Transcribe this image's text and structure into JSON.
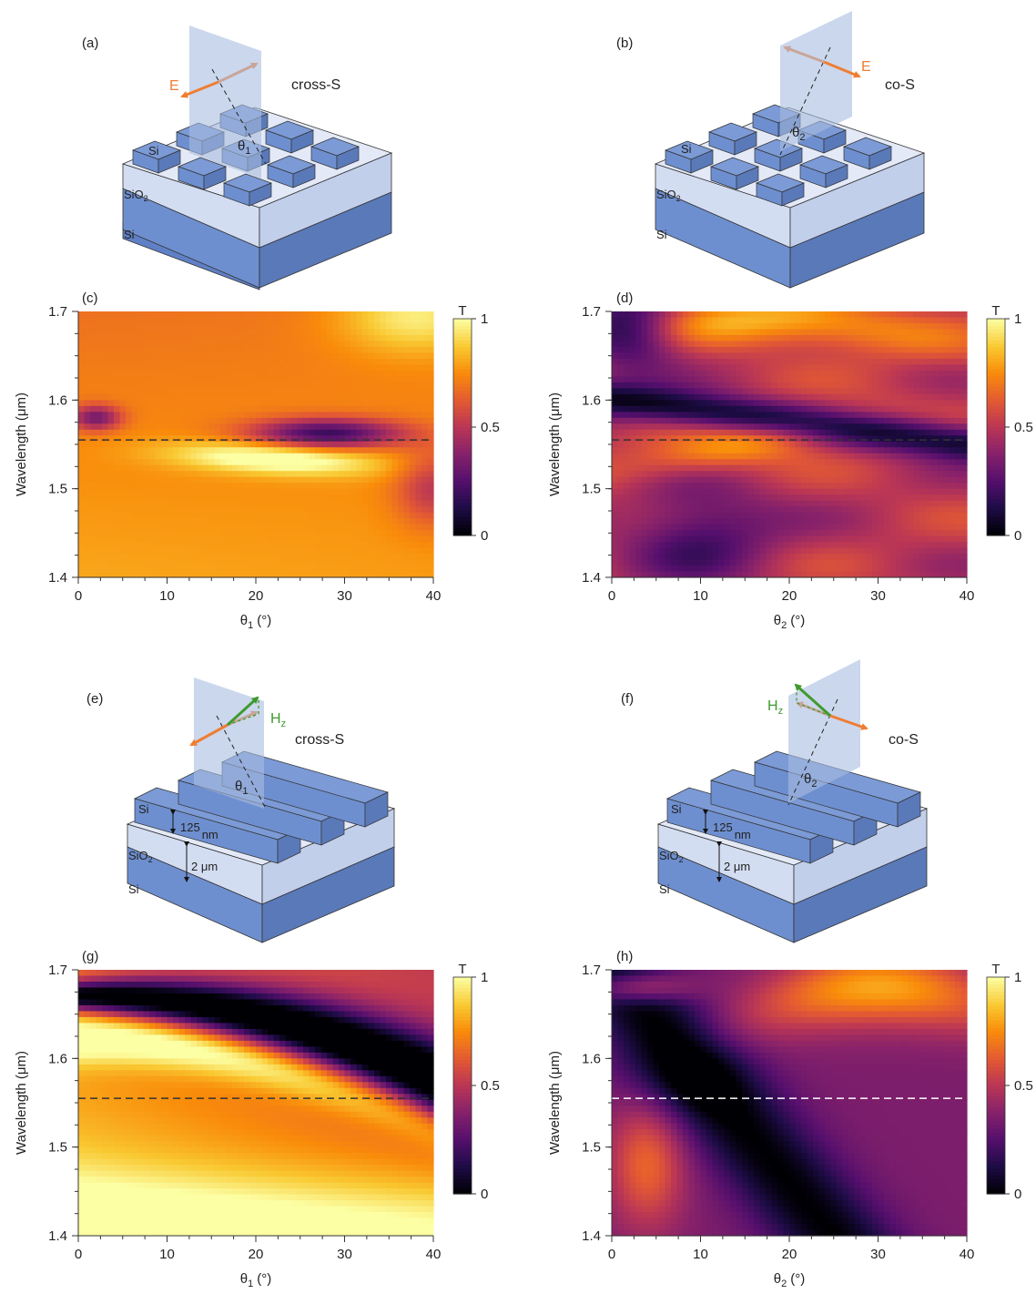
{
  "panels": {
    "a": {
      "tag": "(a)",
      "field": "E",
      "mode": "cross-S",
      "angle": "θ",
      "angle_sub": "1",
      "layers": {
        "pillar": "Si",
        "oxide": "SiO",
        "oxide_sub": "2",
        "substrate": "Si"
      }
    },
    "b": {
      "tag": "(b)",
      "field": "E",
      "mode": "co-S",
      "angle": "θ",
      "angle_sub": "2",
      "layers": {
        "pillar": "Si",
        "oxide": "SiO",
        "oxide_sub": "2",
        "substrate": "Si"
      }
    },
    "e": {
      "tag": "(e)",
      "field": "H",
      "field_sub": "z",
      "mode": "cross-S",
      "angle": "θ",
      "angle_sub": "1",
      "layers": {
        "pillar": "Si",
        "oxide": "SiO",
        "oxide_sub": "2",
        "substrate": "Si"
      },
      "dims": {
        "height": "125",
        "height_unit": "nm",
        "oxide_thickness": "2 μm"
      }
    },
    "f": {
      "tag": "(f)",
      "field": "H",
      "field_sub": "z",
      "mode": "co-S",
      "angle": "θ",
      "angle_sub": "2",
      "layers": {
        "pillar": "Si",
        "oxide": "SiO",
        "oxide_sub": "2",
        "substrate": "Si"
      },
      "dims": {
        "height": "125",
        "height_unit": "nm",
        "oxide_thickness": "2 μm"
      }
    }
  },
  "colors": {
    "si": "#6e8fcf",
    "si_dark": "#5a79b9",
    "si_light": "#8fa9dc",
    "oxide": "#d3ddf2",
    "oxide_side": "#c2cfeb",
    "plane": "#a9bce0",
    "e_field": "#ef7d33",
    "e_field_ghost": "#d2a594",
    "h_field": "#3f9a2e",
    "ghost": "#c8a59a",
    "dashed_dark": "#333333",
    "dashed_light": "#ffffff"
  },
  "chart_data": [
    {
      "id": "c",
      "type": "heatmap",
      "tag": "(c)",
      "xlabel": "θ",
      "xlabel_sub": "1",
      "xlabel_unit": "(°)",
      "ylabel": "Wavelength (μm)",
      "xlim": [
        0,
        40
      ],
      "ylim": [
        1.4,
        1.7
      ],
      "xticks": [
        "0",
        "10",
        "20",
        "30",
        "40"
      ],
      "yticks": [
        "1.4",
        "1.5",
        "1.6",
        "1.7"
      ],
      "colorbar": {
        "label": "T",
        "range": [
          0,
          1
        ],
        "ticks": [
          "0",
          "0.5",
          "1"
        ]
      },
      "reference_line": {
        "wavelength": 1.555,
        "style": "dashed",
        "color": "dark"
      }
    },
    {
      "id": "d",
      "type": "heatmap",
      "tag": "(d)",
      "xlabel": "θ",
      "xlabel_sub": "2",
      "xlabel_unit": "(°)",
      "ylabel": "Wavelength (μm)",
      "xlim": [
        0,
        40
      ],
      "ylim": [
        1.4,
        1.7
      ],
      "xticks": [
        "0",
        "10",
        "20",
        "30",
        "40"
      ],
      "yticks": [
        "1.4",
        "1.5",
        "1.6",
        "1.7"
      ],
      "colorbar": {
        "label": "T",
        "range": [
          0,
          1
        ],
        "ticks": [
          "0",
          "0.5",
          "1"
        ]
      },
      "reference_line": {
        "wavelength": 1.555,
        "style": "dashed",
        "color": "dark"
      }
    },
    {
      "id": "g",
      "type": "heatmap",
      "tag": "(g)",
      "xlabel": "θ",
      "xlabel_sub": "1",
      "xlabel_unit": "(°)",
      "ylabel": "Wavelength (μm)",
      "xlim": [
        0,
        40
      ],
      "ylim": [
        1.4,
        1.7
      ],
      "xticks": [
        "0",
        "10",
        "20",
        "30",
        "40"
      ],
      "yticks": [
        "1.4",
        "1.5",
        "1.6",
        "1.7"
      ],
      "colorbar": {
        "label": "T",
        "range": [
          0,
          1
        ],
        "ticks": [
          "0",
          "0.5",
          "1"
        ]
      },
      "reference_line": {
        "wavelength": 1.555,
        "style": "dashed",
        "color": "dark"
      }
    },
    {
      "id": "h",
      "type": "heatmap",
      "tag": "(h)",
      "xlabel": "θ",
      "xlabel_sub": "2",
      "xlabel_unit": "(°)",
      "ylabel": "Wavelength (μm)",
      "xlim": [
        0,
        40
      ],
      "ylim": [
        1.4,
        1.7
      ],
      "xticks": [
        "0",
        "10",
        "20",
        "30",
        "40"
      ],
      "yticks": [
        "1.4",
        "1.5",
        "1.6",
        "1.7"
      ],
      "colorbar": {
        "label": "T",
        "range": [
          0,
          1
        ],
        "ticks": [
          "0",
          "0.5",
          "1"
        ]
      },
      "reference_line": {
        "wavelength": 1.555,
        "style": "dashed",
        "color": "light"
      }
    }
  ]
}
